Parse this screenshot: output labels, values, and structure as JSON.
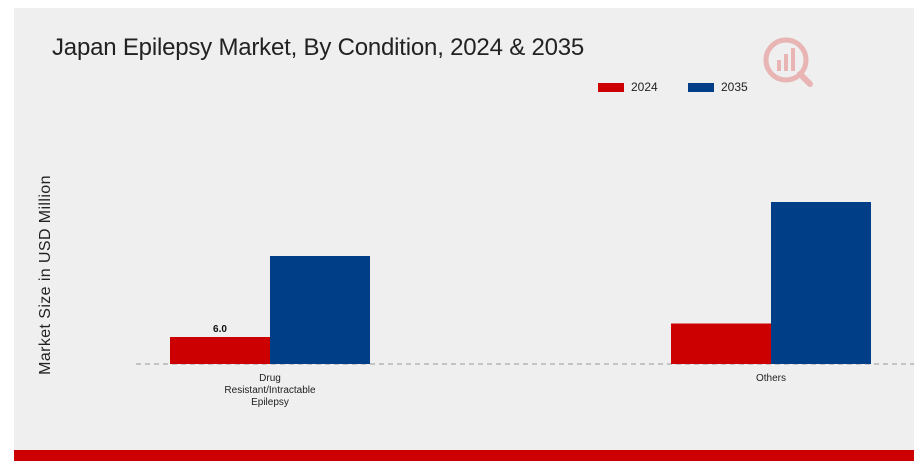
{
  "chart_data": {
    "type": "bar",
    "title": "Japan Epilepsy Market, By Condition, 2024 & 2035",
    "xlabel": "",
    "ylabel": "Market Size in USD Million",
    "categories": [
      "Drug Resistant/Intractable Epilepsy",
      "Others"
    ],
    "category_lines": [
      [
        "Drug",
        "Resistant/Intractable",
        "Epilepsy"
      ],
      [
        "Others"
      ]
    ],
    "series": [
      {
        "name": "2024",
        "color": "#cc0000",
        "values": [
          6.0,
          9.0
        ]
      },
      {
        "name": "2035",
        "color": "#003f87",
        "values": [
          24.0,
          36.0
        ]
      }
    ],
    "data_labels": [
      {
        "series": 0,
        "index": 0,
        "text": "6.0"
      }
    ],
    "ylim": [
      0,
      40
    ],
    "grid": false,
    "legend": "top-right"
  },
  "colors": {
    "accent": "#cc0000",
    "series_2024": "#cc0000",
    "series_2035": "#003f87",
    "panel": "#efefef"
  },
  "logo_icon": "market-research-logo-icon"
}
